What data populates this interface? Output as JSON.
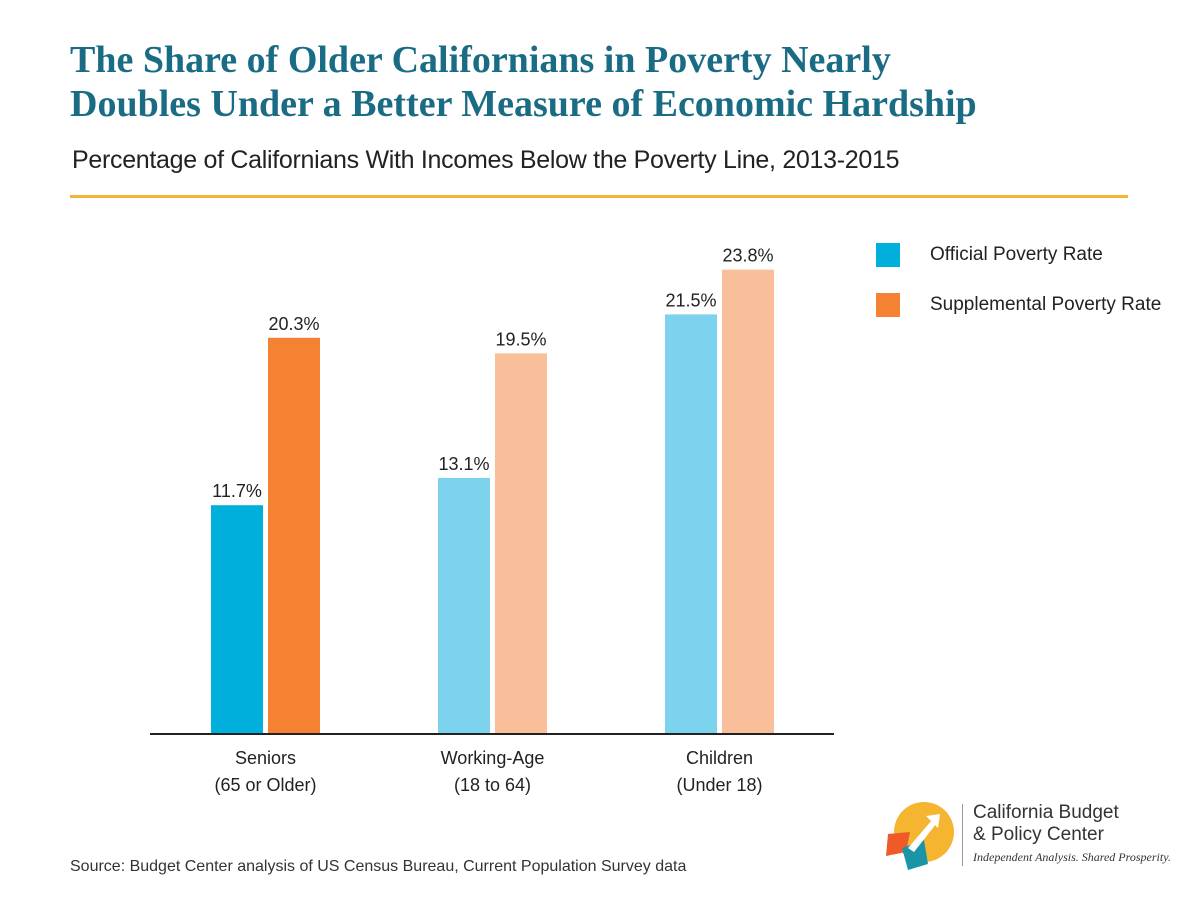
{
  "header": {
    "title_line1": "The Share of Older Californians in Poverty Nearly",
    "title_line2": "Doubles Under a Better Measure of Economic Hardship",
    "subtitle": "Percentage of Californians With Incomes Below the Poverty Line, 2013-2015"
  },
  "colors": {
    "title": "#1a6c85",
    "rule": "#f2b632",
    "official_seniors": "#00afdb",
    "supplemental_seniors": "#f58233",
    "official_light": "#7dd3ed",
    "supplemental_light": "#f8bf9a"
  },
  "chart_data": {
    "type": "bar",
    "categories": [
      [
        "Seniors",
        "(65 or Older)"
      ],
      [
        "Working-Age",
        "(18 to 64)"
      ],
      [
        "Children",
        "(Under 18)"
      ]
    ],
    "series": [
      {
        "name": "Official Poverty Rate",
        "values": [
          11.7,
          13.1,
          21.5
        ],
        "labels": [
          "11.7%",
          "13.1%",
          "21.5%"
        ]
      },
      {
        "name": "Supplemental Poverty Rate",
        "values": [
          20.3,
          19.5,
          23.8
        ],
        "labels": [
          "20.3%",
          "19.5%",
          "23.8%"
        ]
      }
    ],
    "ylim": [
      0,
      24.5
    ],
    "grid": false,
    "legend_position": "top-right"
  },
  "legend": {
    "items": [
      {
        "label": "Official Poverty Rate",
        "color": "#00afdb"
      },
      {
        "label": "Supplemental Poverty Rate",
        "color": "#f58233"
      }
    ]
  },
  "footer": {
    "source": "Source: Budget Center analysis of US Census Bureau, Current Population Survey data",
    "org_line1": "California Budget",
    "org_line2": "& Policy Center",
    "tagline": "Independent Analysis. Shared Prosperity."
  }
}
